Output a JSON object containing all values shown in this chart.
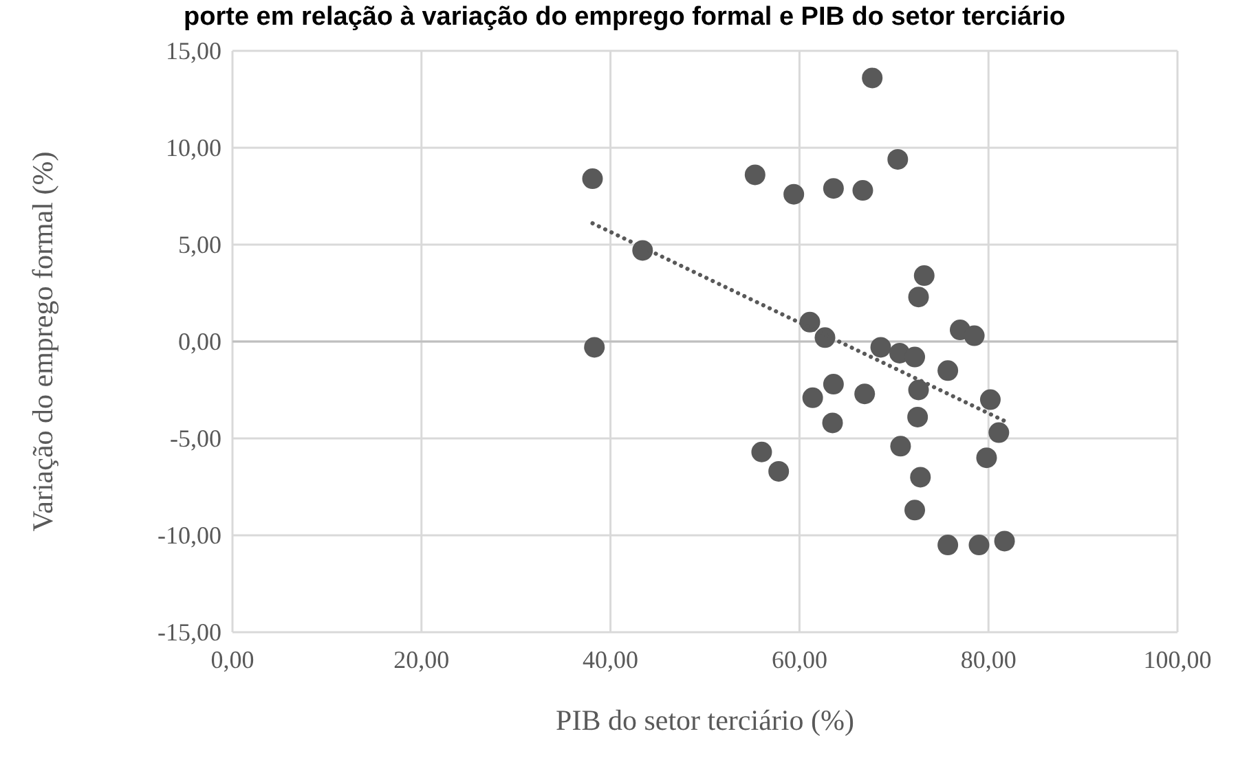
{
  "chart_data": {
    "type": "scatter",
    "title": "porte em relação à variação do emprego formal e PIB do setor terciário",
    "xlabel": "PIB do setor terciário (%)",
    "ylabel": "Variação do emprego formal (%)",
    "xlim": [
      0,
      100
    ],
    "ylim": [
      -15,
      15
    ],
    "xticks": [
      {
        "value": 0,
        "label": "0,00"
      },
      {
        "value": 20,
        "label": "20,00"
      },
      {
        "value": 40,
        "label": "40,00"
      },
      {
        "value": 60,
        "label": "60,00"
      },
      {
        "value": 80,
        "label": "80,00"
      },
      {
        "value": 100,
        "label": "100,00"
      }
    ],
    "yticks": [
      {
        "value": -15,
        "label": "-15,00"
      },
      {
        "value": -10,
        "label": "-10,00"
      },
      {
        "value": -5,
        "label": "-5,00"
      },
      {
        "value": 0,
        "label": "0,00"
      },
      {
        "value": 5,
        "label": "5,00"
      },
      {
        "value": 10,
        "label": "10,00"
      },
      {
        "value": 15,
        "label": "15,00"
      }
    ],
    "grid": true,
    "series": [
      {
        "color": "#595959",
        "marker": "circle",
        "x": [
          38.1,
          67.7,
          70.4,
          55.3,
          59.4,
          63.6,
          66.7,
          43.4,
          73.2,
          72.6,
          61.1,
          62.7,
          77.0,
          78.5,
          38.3,
          68.6,
          70.6,
          72.2,
          75.7,
          63.6,
          61.4,
          66.9,
          72.6,
          80.2,
          63.5,
          72.5,
          81.1,
          56.0,
          57.8,
          70.7,
          79.8,
          72.8,
          72.2,
          75.7,
          79.0,
          81.7
        ],
        "values": [
          8.4,
          13.6,
          9.4,
          8.6,
          7.6,
          7.9,
          7.8,
          4.7,
          3.4,
          2.3,
          1.0,
          0.2,
          0.6,
          0.3,
          -0.3,
          -0.3,
          -0.6,
          -0.8,
          -1.5,
          -2.2,
          -2.9,
          -2.7,
          -2.5,
          -3.0,
          -4.2,
          -3.9,
          -4.7,
          -5.7,
          -6.7,
          -5.4,
          -6.0,
          -7.0,
          -8.7,
          -10.5,
          -10.5,
          -10.3
        ]
      },
      {
        "type": "line",
        "color": "#595959",
        "line_style": "dotted",
        "marker": "none",
        "x": [
          38.1,
          81.7
        ],
        "values": [
          6.1,
          -4.1
        ]
      }
    ]
  }
}
